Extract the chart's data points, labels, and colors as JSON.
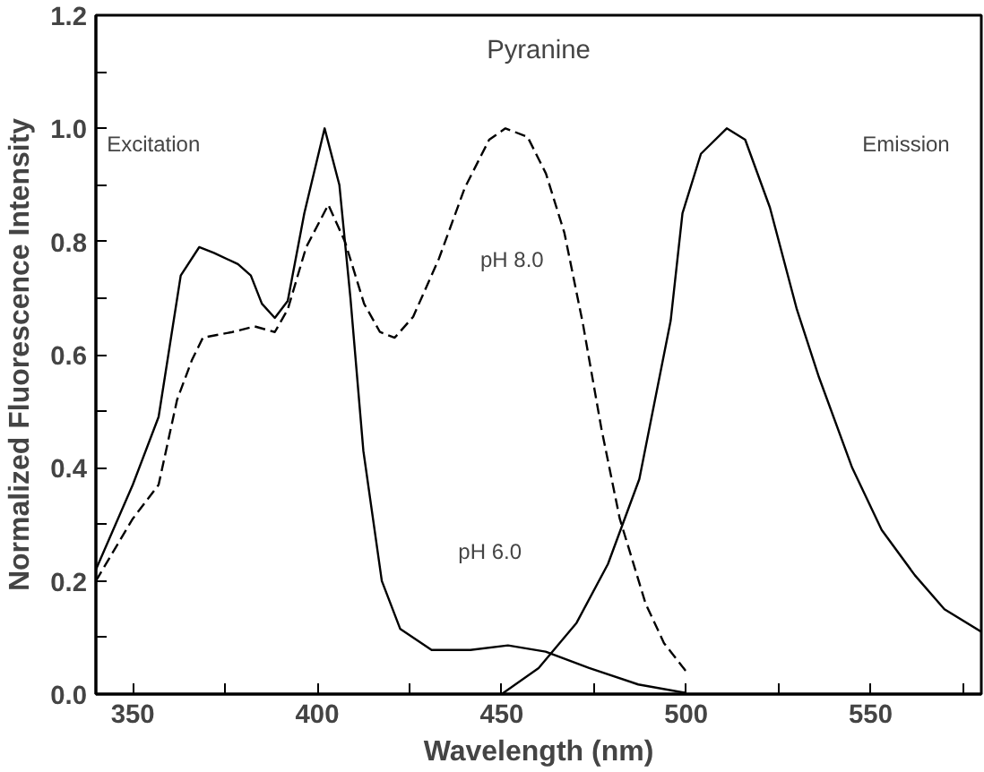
{
  "chart_data": {
    "type": "line",
    "title": "Pyranine",
    "xlabel": "Wavelength (nm)",
    "ylabel": "Normalized Fluorescence Intensity",
    "xlim": [
      340,
      580
    ],
    "ylim": [
      0,
      1.2
    ],
    "xticks": [
      350,
      {
        "value": 375,
        "label": null
      },
      400,
      {
        "value": 425,
        "label": null
      },
      450,
      {
        "value": 475,
        "label": null
      },
      500,
      {
        "value": 525,
        "label": null
      },
      550,
      {
        "value": 575,
        "label": null
      }
    ],
    "yticks": [
      {
        "value": 0,
        "label": "0.0"
      },
      {
        "value": 0.1,
        "label": null
      },
      0.2,
      {
        "value": 0.3,
        "label": null
      },
      0.4,
      {
        "value": 0.5,
        "label": null
      },
      0.6,
      {
        "value": 0.7,
        "label": null
      },
      0.8,
      {
        "value": 0.9,
        "label": null
      },
      {
        "value": 1.0,
        "label": "1.0"
      },
      {
        "value": 1.1,
        "label": null
      },
      1.2
    ],
    "grid": false,
    "marker": "none",
    "series": [
      {
        "color": "#000000",
        "line_style": "solid",
        "x": [
          340,
          350,
          357,
          363,
          368,
          372,
          378.5,
          382,
          385,
          388.5,
          392,
          396.5,
          402,
          406,
          409,
          412.5,
          417.5,
          422.5,
          431,
          441.5,
          451.7,
          461.9,
          473.7,
          487,
          500
        ],
        "values": [
          0.22,
          0.37,
          0.49,
          0.74,
          0.79,
          0.78,
          0.76,
          0.74,
          0.69,
          0.665,
          0.695,
          0.85,
          1.0,
          0.9,
          0.7,
          0.43,
          0.2,
          0.115,
          0.078,
          0.078,
          0.086,
          0.075,
          0.046,
          0.017,
          0.002
        ]
      },
      {
        "color": "#000000",
        "line_style": "dashed",
        "x": [
          340,
          350,
          357,
          362,
          366,
          369,
          377,
          383,
          388.5,
          392,
          397,
          403,
          407.5,
          412.7,
          417,
          421,
          426,
          433,
          440,
          446.6,
          451,
          457,
          462,
          467,
          472,
          477,
          482,
          489,
          494,
          500
        ],
        "values": [
          0.2,
          0.31,
          0.37,
          0.52,
          0.59,
          0.63,
          0.64,
          0.65,
          0.64,
          0.68,
          0.79,
          0.865,
          0.8,
          0.69,
          0.64,
          0.63,
          0.667,
          0.77,
          0.895,
          0.98,
          1.0,
          0.985,
          0.92,
          0.815,
          0.655,
          0.47,
          0.31,
          0.16,
          0.09,
          0.04
        ]
      },
      {
        "color": "#000000",
        "line_style": "solid",
        "x": [
          450,
          460,
          470.3,
          478.8,
          487.3,
          495.8,
          499,
          504,
          511,
          516,
          522.7,
          530,
          536,
          545,
          553,
          562,
          570,
          580
        ],
        "values": [
          0,
          0.046,
          0.126,
          0.23,
          0.38,
          0.66,
          0.85,
          0.955,
          1.0,
          0.98,
          0.86,
          0.68,
          0.56,
          0.4,
          0.29,
          0.21,
          0.15,
          0.11
        ]
      }
    ],
    "annotations": [
      "Excitation",
      "Emission",
      "pH 8.0",
      "pH 6.0"
    ]
  }
}
